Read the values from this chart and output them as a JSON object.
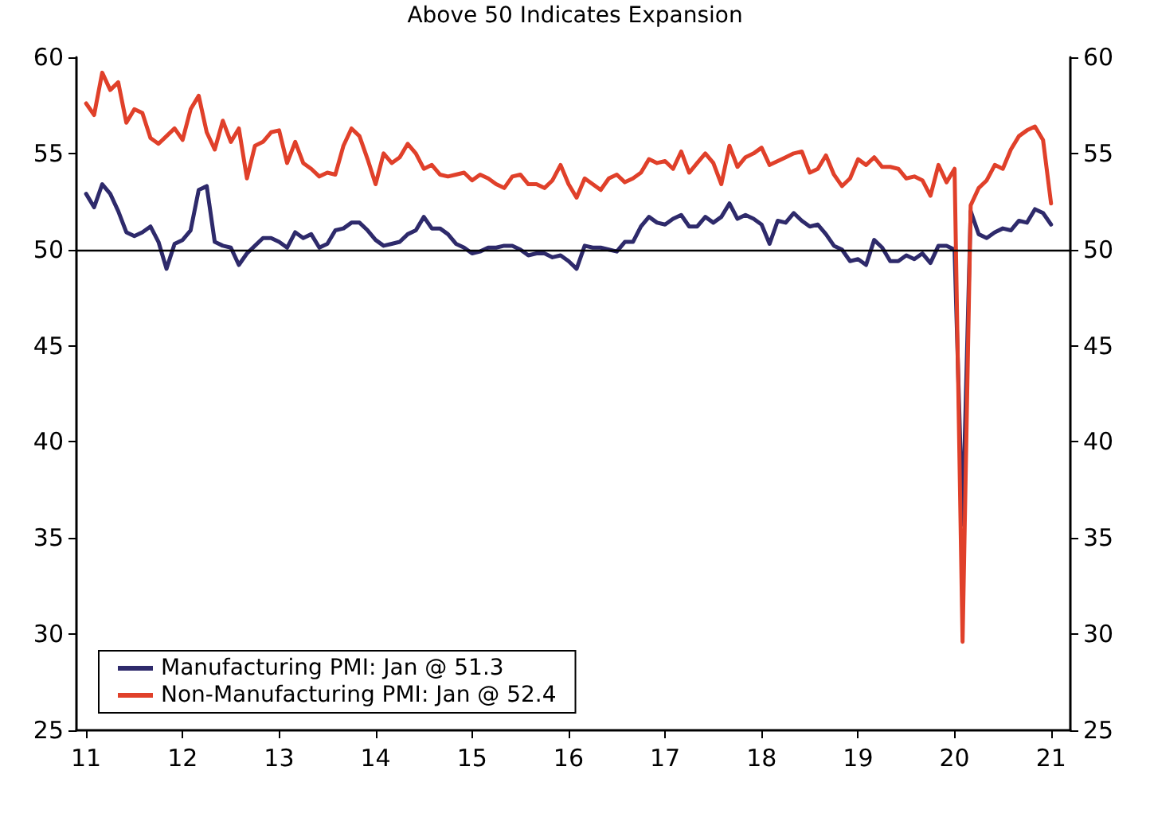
{
  "chart_data": {
    "type": "line",
    "subtitle": "Above 50 Indicates Expansion",
    "x": [
      11,
      11.083,
      11.167,
      11.25,
      11.333,
      11.417,
      11.5,
      11.583,
      11.667,
      11.75,
      11.833,
      11.917,
      12,
      12.083,
      12.167,
      12.25,
      12.333,
      12.417,
      12.5,
      12.583,
      12.667,
      12.75,
      12.833,
      12.917,
      13,
      13.083,
      13.167,
      13.25,
      13.333,
      13.417,
      13.5,
      13.583,
      13.667,
      13.75,
      13.833,
      13.917,
      14,
      14.083,
      14.167,
      14.25,
      14.333,
      14.417,
      14.5,
      14.583,
      14.667,
      14.75,
      14.833,
      14.917,
      15,
      15.083,
      15.167,
      15.25,
      15.333,
      15.417,
      15.5,
      15.583,
      15.667,
      15.75,
      15.833,
      15.917,
      16,
      16.083,
      16.167,
      16.25,
      16.333,
      16.417,
      16.5,
      16.583,
      16.667,
      16.75,
      16.833,
      16.917,
      17,
      17.083,
      17.167,
      17.25,
      17.333,
      17.417,
      17.5,
      17.583,
      17.667,
      17.75,
      17.833,
      17.917,
      18,
      18.083,
      18.167,
      18.25,
      18.333,
      18.417,
      18.5,
      18.583,
      18.667,
      18.75,
      18.833,
      18.917,
      19,
      19.083,
      19.167,
      19.25,
      19.333,
      19.417,
      19.5,
      19.583,
      19.667,
      19.75,
      19.833,
      19.917,
      20,
      20.083,
      20.167,
      20.25,
      20.333,
      20.417,
      20.5,
      20.583,
      20.667,
      20.75,
      20.833,
      20.917,
      21
    ],
    "series": [
      {
        "name": "Manufacturing PMI: Jan @ 51.3",
        "color": "#2e2a6b",
        "values": [
          52.9,
          52.2,
          53.4,
          52.9,
          52.0,
          50.9,
          50.7,
          50.9,
          51.2,
          50.4,
          49.0,
          50.3,
          50.5,
          51.0,
          53.1,
          53.3,
          50.4,
          50.2,
          50.1,
          49.2,
          49.8,
          50.2,
          50.6,
          50.6,
          50.4,
          50.1,
          50.9,
          50.6,
          50.8,
          50.1,
          50.3,
          51.0,
          51.1,
          51.4,
          51.4,
          51.0,
          50.5,
          50.2,
          50.3,
          50.4,
          50.8,
          51.0,
          51.7,
          51.1,
          51.1,
          50.8,
          50.3,
          50.1,
          49.8,
          49.9,
          50.1,
          50.1,
          50.2,
          50.2,
          50.0,
          49.7,
          49.8,
          49.8,
          49.6,
          49.7,
          49.4,
          49.0,
          50.2,
          50.1,
          50.1,
          50.0,
          49.9,
          50.4,
          50.4,
          51.2,
          51.7,
          51.4,
          51.3,
          51.6,
          51.8,
          51.2,
          51.2,
          51.7,
          51.4,
          51.7,
          52.4,
          51.6,
          51.8,
          51.6,
          51.3,
          50.3,
          51.5,
          51.4,
          51.9,
          51.5,
          51.2,
          51.3,
          50.8,
          50.2,
          50.0,
          49.4,
          49.5,
          49.2,
          50.5,
          50.1,
          49.4,
          49.4,
          49.7,
          49.5,
          49.8,
          49.3,
          50.2,
          50.2,
          50.0,
          35.7,
          52.0,
          50.8,
          50.6,
          50.9,
          51.1,
          51.0,
          51.5,
          51.4,
          52.1,
          51.9,
          51.3
        ]
      },
      {
        "name": "Non-Manufacturing PMI: Jan @ 52.4",
        "color": "#e0402a",
        "values": [
          57.6,
          57.0,
          59.2,
          58.3,
          58.7,
          56.6,
          57.3,
          57.1,
          55.8,
          55.5,
          55.9,
          56.3,
          55.7,
          57.3,
          58.0,
          56.1,
          55.2,
          56.7,
          55.6,
          56.3,
          53.7,
          55.4,
          55.6,
          56.1,
          56.2,
          54.5,
          55.6,
          54.5,
          54.2,
          53.8,
          54.0,
          53.9,
          55.4,
          56.3,
          55.9,
          54.7,
          53.4,
          55.0,
          54.5,
          54.8,
          55.5,
          55.0,
          54.2,
          54.4,
          53.9,
          53.8,
          53.9,
          54.0,
          53.6,
          53.9,
          53.7,
          53.4,
          53.2,
          53.8,
          53.9,
          53.4,
          53.4,
          53.2,
          53.6,
          54.4,
          53.4,
          52.7,
          53.7,
          53.4,
          53.1,
          53.7,
          53.9,
          53.5,
          53.7,
          54.0,
          54.7,
          54.5,
          54.6,
          54.2,
          55.1,
          54.0,
          54.5,
          55.0,
          54.5,
          53.4,
          55.4,
          54.3,
          54.8,
          55.0,
          55.3,
          54.4,
          54.6,
          54.8,
          55.0,
          55.1,
          54.0,
          54.2,
          54.9,
          53.9,
          53.3,
          53.7,
          54.7,
          54.4,
          54.8,
          54.3,
          54.3,
          54.2,
          53.7,
          53.8,
          53.6,
          52.8,
          54.4,
          53.5,
          54.2,
          29.6,
          52.3,
          53.2,
          53.6,
          54.4,
          54.2,
          55.2,
          55.9,
          56.2,
          56.4,
          55.7,
          52.4
        ]
      }
    ],
    "xlim": [
      10.9,
      21.2
    ],
    "xticks": [
      11,
      12,
      13,
      14,
      15,
      16,
      17,
      18,
      19,
      20,
      21
    ],
    "ylim": [
      25,
      60
    ],
    "yticks": [
      25,
      30,
      35,
      40,
      45,
      50,
      55,
      60
    ],
    "y2lim": [
      25,
      60
    ],
    "y2ticks": [
      25,
      30,
      35,
      40,
      45,
      50,
      55,
      60
    ],
    "ref_lines": [
      {
        "axis": "y",
        "value": 50,
        "color": "#000000",
        "line_style": "solid"
      }
    ],
    "legend": "bottom left",
    "grid": false,
    "marker": "none",
    "line_style": "solid"
  }
}
